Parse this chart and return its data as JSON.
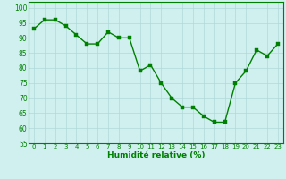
{
  "x": [
    0,
    1,
    2,
    3,
    4,
    5,
    6,
    7,
    8,
    9,
    10,
    11,
    12,
    13,
    14,
    15,
    16,
    17,
    18,
    19,
    20,
    21,
    22,
    23
  ],
  "y": [
    93,
    96,
    96,
    94,
    91,
    88,
    88,
    92,
    90,
    90,
    79,
    81,
    75,
    70,
    67,
    67,
    64,
    62,
    62,
    75,
    79,
    86,
    84,
    88
  ],
  "line_color": "#008000",
  "marker_color": "#008000",
  "background_color": "#d0f0f0",
  "grid_color": "#b0d8d8",
  "xlabel": "Humidité relative (%)",
  "xlabel_color": "#008000",
  "ylim": [
    55,
    102
  ],
  "yticks": [
    55,
    60,
    65,
    70,
    75,
    80,
    85,
    90,
    95,
    100
  ],
  "xticks": [
    0,
    1,
    2,
    3,
    4,
    5,
    6,
    7,
    8,
    9,
    10,
    11,
    12,
    13,
    14,
    15,
    16,
    17,
    18,
    19,
    20,
    21,
    22,
    23
  ],
  "xlim": [
    -0.5,
    23.5
  ],
  "marker_size": 2.5,
  "line_width": 1.0,
  "ytick_fontsize": 5.5,
  "xtick_fontsize": 5.0,
  "xlabel_fontsize": 6.5
}
